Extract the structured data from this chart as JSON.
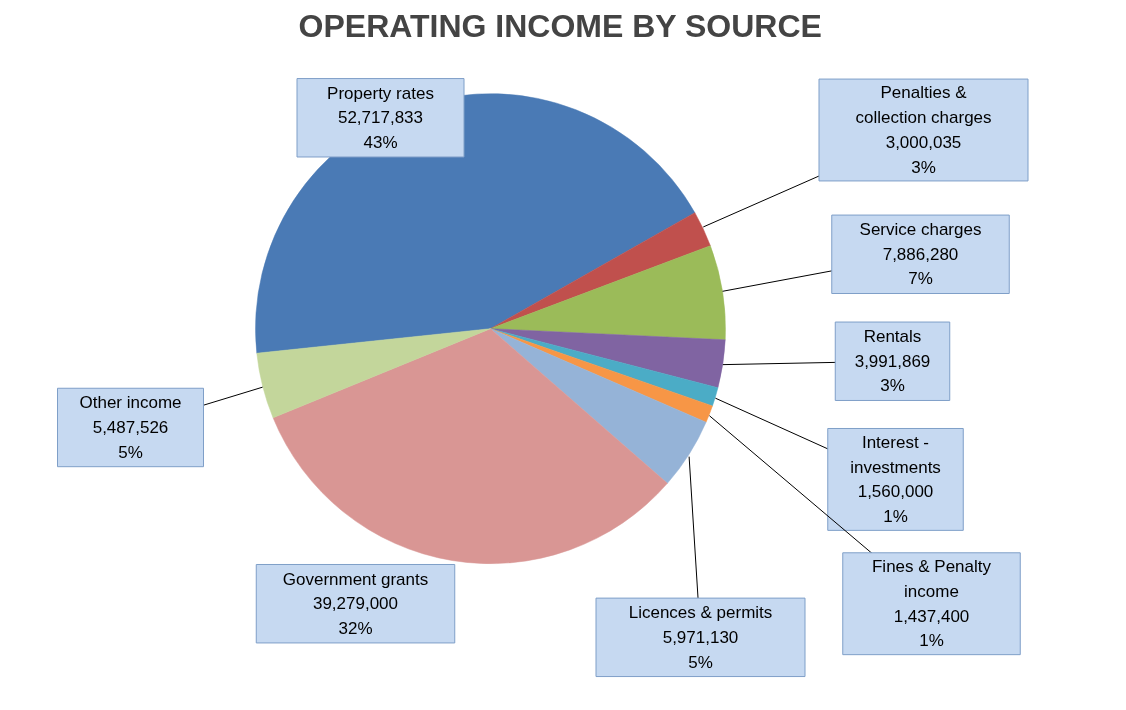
{
  "chart_data": {
    "type": "pie",
    "title": "OPERATING INCOME BY SOURCE",
    "categories": [
      "Property rates",
      "Penalties & collection charges",
      "Service charges",
      "Rentals",
      "Interest - investments",
      "Fines & Penalty income",
      "Licences & permits",
      "Government grants",
      "Other income"
    ],
    "values": [
      52717833,
      3000035,
      7886280,
      3991869,
      1560000,
      1437400,
      5971130,
      39279000,
      5487526
    ],
    "colors": [
      "#4a7ab5",
      "#c0504d",
      "#9bbb59",
      "#8064a2",
      "#4bacc6",
      "#f79646",
      "#95b3d7",
      "#d99694",
      "#c3d69b"
    ],
    "value_labels": [
      "52,717,833\n43%",
      "3,000,035\n3%",
      "7,886,280\n7%",
      "3,991,869\n3%",
      "1,560,000\n1%",
      "1,437,400\n1%",
      "5,971,130\n5%",
      "39,279,000\n32%",
      "5,487,526\n5%"
    ]
  }
}
